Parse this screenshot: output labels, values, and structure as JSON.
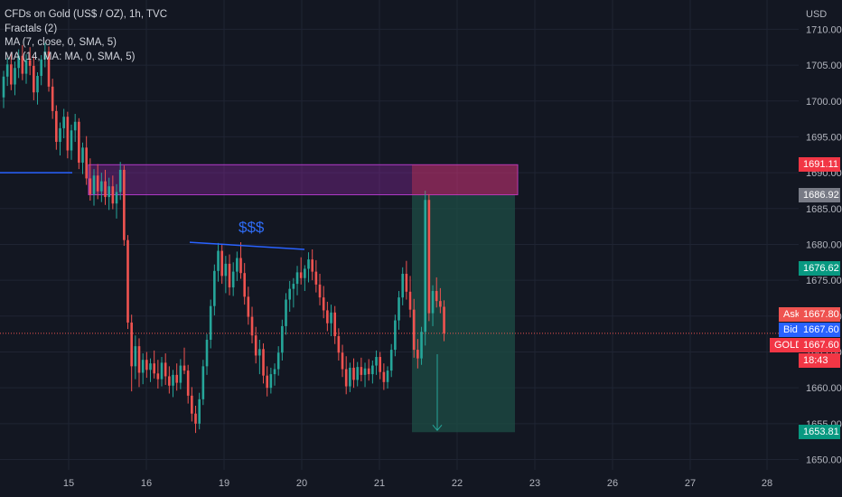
{
  "chart_data": {
    "type": "candlestick",
    "instrument_title": "CFDs on Gold (US$ / OZ), 1h, TVC",
    "indicators": [
      "Fractals (2)",
      "MA (7, close, 0, SMA, 5)",
      "MA (14, MA: MA, 0, SMA, 5)"
    ],
    "y_unit_label": "USD",
    "ylim": [
      1648,
      1712
    ],
    "y_ticks": [
      1650,
      1655,
      1660,
      1665,
      1670,
      1675,
      1680,
      1685,
      1690,
      1695,
      1700,
      1705,
      1710
    ],
    "x_ticks": [
      "15",
      "16",
      "19",
      "20",
      "21",
      "22",
      "23",
      "26",
      "27",
      "28"
    ],
    "grid": true,
    "annotation_text": "$$$",
    "zones": {
      "supply": [
        1686.92,
        1691.11
      ],
      "target": [
        1653.81,
        1686.92
      ]
    },
    "price_labels": {
      "sell_zone_top": "1691.11",
      "sell_zone_bottom": "1686.92",
      "mid_level": "1676.62",
      "target": "1653.81",
      "ask_label": "Ask",
      "ask_value": "1667.80",
      "bid_label": "Bid",
      "bid_value": "1667.60",
      "symbol_label": "GOLD",
      "last_value": "1667.60",
      "countdown": "18:43"
    },
    "colors": {
      "background": "#131722",
      "up": "#26a69a",
      "down": "#ef5350",
      "zone_purple": "#9c27b0",
      "zone_green": "#1e4d45",
      "ma_line": "#2962ff",
      "ask": "#ef5350",
      "bid": "#2962ff"
    },
    "candles": [
      {
        "o": 1700.5,
        "h": 1704.2,
        "l": 1699.0,
        "c": 1703.4
      },
      {
        "o": 1703.4,
        "h": 1706.0,
        "l": 1702.1,
        "c": 1705.1
      },
      {
        "o": 1705.1,
        "h": 1706.8,
        "l": 1701.5,
        "c": 1702.3
      },
      {
        "o": 1702.3,
        "h": 1705.5,
        "l": 1700.8,
        "c": 1704.6
      },
      {
        "o": 1704.6,
        "h": 1707.2,
        "l": 1703.2,
        "c": 1706.3
      },
      {
        "o": 1706.3,
        "h": 1707.8,
        "l": 1702.9,
        "c": 1703.8
      },
      {
        "o": 1703.8,
        "h": 1706.5,
        "l": 1702.4,
        "c": 1705.7
      },
      {
        "o": 1705.7,
        "h": 1707.5,
        "l": 1703.6,
        "c": 1704.9
      },
      {
        "o": 1704.9,
        "h": 1706.2,
        "l": 1700.1,
        "c": 1701.2
      },
      {
        "o": 1701.2,
        "h": 1704.0,
        "l": 1699.5,
        "c": 1703.5
      },
      {
        "o": 1703.5,
        "h": 1706.4,
        "l": 1702.2,
        "c": 1705.8
      },
      {
        "o": 1705.8,
        "h": 1708.1,
        "l": 1704.7,
        "c": 1706.9
      },
      {
        "o": 1706.9,
        "h": 1707.6,
        "l": 1701.3,
        "c": 1702.0
      },
      {
        "o": 1702.0,
        "h": 1703.1,
        "l": 1697.5,
        "c": 1698.6
      },
      {
        "o": 1698.6,
        "h": 1699.4,
        "l": 1693.2,
        "c": 1694.3
      },
      {
        "o": 1694.3,
        "h": 1697.0,
        "l": 1692.4,
        "c": 1696.2
      },
      {
        "o": 1696.2,
        "h": 1698.9,
        "l": 1694.8,
        "c": 1697.8
      },
      {
        "o": 1697.8,
        "h": 1698.5,
        "l": 1692.0,
        "c": 1693.1
      },
      {
        "o": 1693.1,
        "h": 1696.7,
        "l": 1691.8,
        "c": 1695.9
      },
      {
        "o": 1695.9,
        "h": 1698.2,
        "l": 1694.3,
        "c": 1697.1
      },
      {
        "o": 1697.1,
        "h": 1697.6,
        "l": 1690.5,
        "c": 1691.4
      },
      {
        "o": 1691.4,
        "h": 1694.2,
        "l": 1689.8,
        "c": 1693.5
      },
      {
        "o": 1693.5,
        "h": 1695.1,
        "l": 1688.3,
        "c": 1689.2
      },
      {
        "o": 1689.2,
        "h": 1692.0,
        "l": 1686.1,
        "c": 1687.0
      },
      {
        "o": 1687.0,
        "h": 1690.5,
        "l": 1685.4,
        "c": 1689.6
      },
      {
        "o": 1689.6,
        "h": 1691.2,
        "l": 1686.3,
        "c": 1687.4
      },
      {
        "o": 1687.4,
        "h": 1690.0,
        "l": 1685.9,
        "c": 1688.8
      },
      {
        "o": 1688.8,
        "h": 1690.4,
        "l": 1685.5,
        "c": 1686.6
      },
      {
        "o": 1686.6,
        "h": 1689.3,
        "l": 1684.8,
        "c": 1688.1
      },
      {
        "o": 1688.1,
        "h": 1689.6,
        "l": 1684.9,
        "c": 1685.7
      },
      {
        "o": 1685.7,
        "h": 1688.4,
        "l": 1683.6,
        "c": 1687.3
      },
      {
        "o": 1687.3,
        "h": 1691.5,
        "l": 1686.2,
        "c": 1690.4
      },
      {
        "o": 1690.4,
        "h": 1691.0,
        "l": 1679.8,
        "c": 1680.6
      },
      {
        "o": 1680.6,
        "h": 1681.3,
        "l": 1668.2,
        "c": 1669.1
      },
      {
        "o": 1669.1,
        "h": 1670.2,
        "l": 1659.5,
        "c": 1663.0
      },
      {
        "o": 1663.0,
        "h": 1667.3,
        "l": 1661.2,
        "c": 1665.8
      },
      {
        "o": 1665.8,
        "h": 1666.9,
        "l": 1660.1,
        "c": 1662.1
      },
      {
        "o": 1662.1,
        "h": 1664.8,
        "l": 1660.5,
        "c": 1663.9
      },
      {
        "o": 1663.9,
        "h": 1665.0,
        "l": 1661.4,
        "c": 1662.5
      },
      {
        "o": 1662.5,
        "h": 1664.1,
        "l": 1660.8,
        "c": 1663.4
      },
      {
        "o": 1663.4,
        "h": 1665.2,
        "l": 1661.3,
        "c": 1662.0
      },
      {
        "o": 1662.0,
        "h": 1663.9,
        "l": 1659.9,
        "c": 1661.2
      },
      {
        "o": 1661.2,
        "h": 1664.3,
        "l": 1660.2,
        "c": 1663.5
      },
      {
        "o": 1663.5,
        "h": 1664.8,
        "l": 1660.4,
        "c": 1661.6
      },
      {
        "o": 1661.6,
        "h": 1663.0,
        "l": 1659.2,
        "c": 1660.3
      },
      {
        "o": 1660.3,
        "h": 1662.5,
        "l": 1658.7,
        "c": 1661.8
      },
      {
        "o": 1661.8,
        "h": 1663.4,
        "l": 1659.6,
        "c": 1660.7
      },
      {
        "o": 1660.7,
        "h": 1664.0,
        "l": 1659.8,
        "c": 1663.1
      },
      {
        "o": 1663.1,
        "h": 1665.6,
        "l": 1661.9,
        "c": 1662.4
      },
      {
        "o": 1662.4,
        "h": 1663.2,
        "l": 1657.8,
        "c": 1658.9
      },
      {
        "o": 1658.9,
        "h": 1660.1,
        "l": 1655.3,
        "c": 1656.4
      },
      {
        "o": 1656.4,
        "h": 1657.5,
        "l": 1653.7,
        "c": 1655.0
      },
      {
        "o": 1655.0,
        "h": 1659.3,
        "l": 1654.2,
        "c": 1658.4
      },
      {
        "o": 1658.4,
        "h": 1663.9,
        "l": 1657.6,
        "c": 1663.0
      },
      {
        "o": 1663.0,
        "h": 1667.5,
        "l": 1661.8,
        "c": 1666.7
      },
      {
        "o": 1666.7,
        "h": 1672.3,
        "l": 1665.5,
        "c": 1671.4
      },
      {
        "o": 1671.4,
        "h": 1677.2,
        "l": 1670.1,
        "c": 1676.3
      },
      {
        "o": 1676.3,
        "h": 1680.2,
        "l": 1674.8,
        "c": 1679.1
      },
      {
        "o": 1679.1,
        "h": 1680.1,
        "l": 1674.5,
        "c": 1675.6
      },
      {
        "o": 1675.6,
        "h": 1678.4,
        "l": 1673.2,
        "c": 1677.3
      },
      {
        "o": 1677.3,
        "h": 1678.6,
        "l": 1672.9,
        "c": 1674.0
      },
      {
        "o": 1674.0,
        "h": 1677.5,
        "l": 1672.8,
        "c": 1676.2
      },
      {
        "o": 1676.2,
        "h": 1679.0,
        "l": 1674.9,
        "c": 1678.1
      },
      {
        "o": 1678.1,
        "h": 1680.3,
        "l": 1675.2,
        "c": 1676.0
      },
      {
        "o": 1676.0,
        "h": 1677.4,
        "l": 1671.6,
        "c": 1672.7
      },
      {
        "o": 1672.7,
        "h": 1674.1,
        "l": 1668.8,
        "c": 1669.9
      },
      {
        "o": 1669.9,
        "h": 1671.3,
        "l": 1666.2,
        "c": 1667.3
      },
      {
        "o": 1667.3,
        "h": 1668.5,
        "l": 1663.4,
        "c": 1664.5
      },
      {
        "o": 1664.5,
        "h": 1666.7,
        "l": 1661.9,
        "c": 1665.4
      },
      {
        "o": 1665.4,
        "h": 1666.2,
        "l": 1660.6,
        "c": 1661.7
      },
      {
        "o": 1661.7,
        "h": 1663.0,
        "l": 1658.8,
        "c": 1660.0
      },
      {
        "o": 1660.0,
        "h": 1662.8,
        "l": 1659.2,
        "c": 1661.9
      },
      {
        "o": 1661.9,
        "h": 1663.4,
        "l": 1660.3,
        "c": 1662.6
      },
      {
        "o": 1662.6,
        "h": 1665.8,
        "l": 1661.7,
        "c": 1664.9
      },
      {
        "o": 1664.9,
        "h": 1669.5,
        "l": 1663.8,
        "c": 1668.6
      },
      {
        "o": 1668.6,
        "h": 1673.2,
        "l": 1667.4,
        "c": 1672.3
      },
      {
        "o": 1672.3,
        "h": 1674.9,
        "l": 1670.6,
        "c": 1673.8
      },
      {
        "o": 1673.8,
        "h": 1675.3,
        "l": 1671.2,
        "c": 1674.5
      },
      {
        "o": 1674.5,
        "h": 1677.0,
        "l": 1672.9,
        "c": 1676.1
      },
      {
        "o": 1676.1,
        "h": 1678.2,
        "l": 1674.4,
        "c": 1675.3
      },
      {
        "o": 1675.3,
        "h": 1677.1,
        "l": 1673.5,
        "c": 1676.6
      },
      {
        "o": 1676.6,
        "h": 1678.9,
        "l": 1674.7,
        "c": 1677.9
      },
      {
        "o": 1677.9,
        "h": 1679.3,
        "l": 1675.0,
        "c": 1676.2
      },
      {
        "o": 1676.2,
        "h": 1677.8,
        "l": 1673.3,
        "c": 1674.4
      },
      {
        "o": 1674.4,
        "h": 1675.9,
        "l": 1671.5,
        "c": 1672.6
      },
      {
        "o": 1672.6,
        "h": 1674.2,
        "l": 1669.7,
        "c": 1670.8
      },
      {
        "o": 1670.8,
        "h": 1672.0,
        "l": 1667.9,
        "c": 1669.0
      },
      {
        "o": 1669.0,
        "h": 1671.6,
        "l": 1667.2,
        "c": 1670.5
      },
      {
        "o": 1670.5,
        "h": 1671.4,
        "l": 1666.1,
        "c": 1667.2
      },
      {
        "o": 1667.2,
        "h": 1668.3,
        "l": 1663.8,
        "c": 1664.9
      },
      {
        "o": 1664.9,
        "h": 1666.0,
        "l": 1661.5,
        "c": 1662.6
      },
      {
        "o": 1662.6,
        "h": 1664.4,
        "l": 1659.1,
        "c": 1660.2
      },
      {
        "o": 1660.2,
        "h": 1663.5,
        "l": 1659.4,
        "c": 1662.8
      },
      {
        "o": 1662.8,
        "h": 1664.1,
        "l": 1660.0,
        "c": 1661.1
      },
      {
        "o": 1661.1,
        "h": 1663.6,
        "l": 1660.2,
        "c": 1662.9
      },
      {
        "o": 1662.9,
        "h": 1664.2,
        "l": 1660.9,
        "c": 1661.8
      },
      {
        "o": 1661.8,
        "h": 1663.5,
        "l": 1660.1,
        "c": 1662.7
      },
      {
        "o": 1662.7,
        "h": 1664.0,
        "l": 1661.0,
        "c": 1661.9
      },
      {
        "o": 1661.9,
        "h": 1663.8,
        "l": 1660.6,
        "c": 1663.1
      },
      {
        "o": 1663.1,
        "h": 1665.2,
        "l": 1661.8,
        "c": 1664.3
      },
      {
        "o": 1664.3,
        "h": 1665.0,
        "l": 1661.2,
        "c": 1662.2
      },
      {
        "o": 1662.2,
        "h": 1663.4,
        "l": 1659.7,
        "c": 1660.8
      },
      {
        "o": 1660.8,
        "h": 1663.0,
        "l": 1659.9,
        "c": 1662.4
      },
      {
        "o": 1662.4,
        "h": 1666.1,
        "l": 1661.5,
        "c": 1665.3
      },
      {
        "o": 1665.3,
        "h": 1670.2,
        "l": 1664.4,
        "c": 1669.4
      },
      {
        "o": 1669.4,
        "h": 1673.5,
        "l": 1668.1,
        "c": 1672.6
      },
      {
        "o": 1672.6,
        "h": 1676.8,
        "l": 1671.5,
        "c": 1675.9
      },
      {
        "o": 1675.9,
        "h": 1677.7,
        "l": 1672.3,
        "c": 1673.4
      },
      {
        "o": 1673.4,
        "h": 1675.6,
        "l": 1669.8,
        "c": 1670.9
      },
      {
        "o": 1670.9,
        "h": 1672.4,
        "l": 1664.2,
        "c": 1665.3
      },
      {
        "o": 1665.3,
        "h": 1666.8,
        "l": 1662.7,
        "c": 1664.1
      },
      {
        "o": 1664.1,
        "h": 1668.5,
        "l": 1663.2,
        "c": 1667.8
      },
      {
        "o": 1667.8,
        "h": 1687.5,
        "l": 1665.9,
        "c": 1686.2
      },
      {
        "o": 1686.2,
        "h": 1687.0,
        "l": 1669.3,
        "c": 1670.4
      },
      {
        "o": 1670.4,
        "h": 1674.3,
        "l": 1668.6,
        "c": 1673.5
      },
      {
        "o": 1673.5,
        "h": 1675.4,
        "l": 1671.2,
        "c": 1672.1
      },
      {
        "o": 1672.1,
        "h": 1673.9,
        "l": 1670.4,
        "c": 1671.3
      },
      {
        "o": 1671.3,
        "h": 1672.2,
        "l": 1666.5,
        "c": 1667.6
      }
    ]
  }
}
